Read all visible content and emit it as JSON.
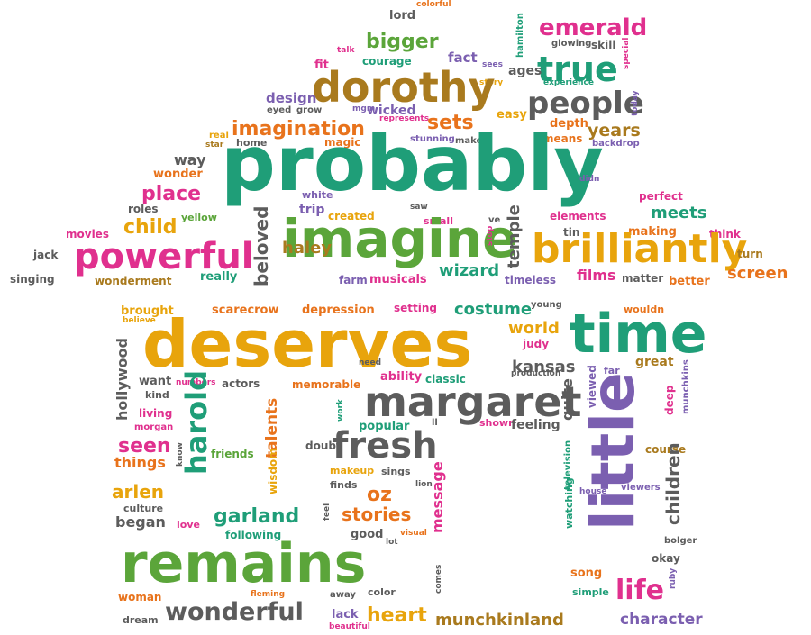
{
  "colors": {
    "green": "#5ba53a",
    "teal": "#1f9e78",
    "pink": "#e0308e",
    "orange": "#e8a40c",
    "brown": "#a97a1e",
    "purple": "#7b5fb0",
    "gray": "#5c5c5c",
    "orange_red": "#e8731c"
  },
  "words": [
    {
      "text": "lord",
      "color": "gray",
      "weight": 1
    },
    {
      "text": "colorful",
      "color": "orange_red",
      "weight": 1
    },
    {
      "text": "hamilton",
      "color": "teal",
      "weight": 1
    },
    {
      "text": "emerald",
      "color": "pink",
      "weight": 3
    },
    {
      "text": "talk",
      "color": "pink",
      "weight": 1
    },
    {
      "text": "bigger",
      "color": "green",
      "weight": 2
    },
    {
      "text": "fact",
      "color": "purple",
      "weight": 2
    },
    {
      "text": "sees",
      "color": "purple",
      "weight": 1
    },
    {
      "text": "glowing",
      "color": "gray",
      "weight": 1
    },
    {
      "text": "skill",
      "color": "gray",
      "weight": 1
    },
    {
      "text": "special",
      "color": "pink",
      "weight": 1
    },
    {
      "text": "fit",
      "color": "pink",
      "weight": 1
    },
    {
      "text": "courage",
      "color": "teal",
      "weight": 1
    },
    {
      "text": "true",
      "color": "teal",
      "weight": 4
    },
    {
      "text": "ages",
      "color": "gray",
      "weight": 1
    },
    {
      "text": "story",
      "color": "orange",
      "weight": 1
    },
    {
      "text": "experience",
      "color": "teal",
      "weight": 1
    },
    {
      "text": "dorothy",
      "color": "brown",
      "weight": 5
    },
    {
      "text": "design",
      "color": "purple",
      "weight": 2
    },
    {
      "text": "eyed",
      "color": "gray",
      "weight": 1
    },
    {
      "text": "grow",
      "color": "gray",
      "weight": 1
    },
    {
      "text": "mgm",
      "color": "purple",
      "weight": 1
    },
    {
      "text": "wicked",
      "color": "purple",
      "weight": 2
    },
    {
      "text": "people",
      "color": "gray",
      "weight": 3
    },
    {
      "text": "today",
      "color": "purple",
      "weight": 1
    },
    {
      "text": "represents",
      "color": "pink",
      "weight": 1
    },
    {
      "text": "easy",
      "color": "orange",
      "weight": 1
    },
    {
      "text": "depth",
      "color": "orange_red",
      "weight": 1
    },
    {
      "text": "imagination",
      "color": "orange_red",
      "weight": 3
    },
    {
      "text": "sets",
      "color": "orange_red",
      "weight": 3
    },
    {
      "text": "years",
      "color": "brown",
      "weight": 2
    },
    {
      "text": "real",
      "color": "orange",
      "weight": 1
    },
    {
      "text": "star",
      "color": "brown",
      "weight": 1
    },
    {
      "text": "home",
      "color": "gray",
      "weight": 1
    },
    {
      "text": "magic",
      "color": "orange_red",
      "weight": 1
    },
    {
      "text": "stunning",
      "color": "purple",
      "weight": 1
    },
    {
      "text": "makes",
      "color": "gray",
      "weight": 1
    },
    {
      "text": "means",
      "color": "orange_red",
      "weight": 1
    },
    {
      "text": "backdrop",
      "color": "purple",
      "weight": 1
    },
    {
      "text": "way",
      "color": "gray",
      "weight": 2
    },
    {
      "text": "probably",
      "color": "teal",
      "weight": 8
    },
    {
      "text": "wonder",
      "color": "orange_red",
      "weight": 1
    },
    {
      "text": "didn",
      "color": "purple",
      "weight": 1
    },
    {
      "text": "place",
      "color": "pink",
      "weight": 3
    },
    {
      "text": "white",
      "color": "purple",
      "weight": 1
    },
    {
      "text": "saw",
      "color": "gray",
      "weight": 1
    },
    {
      "text": "perfect",
      "color": "pink",
      "weight": 1
    },
    {
      "text": "roles",
      "color": "gray",
      "weight": 1
    },
    {
      "text": "trip",
      "color": "purple",
      "weight": 1
    },
    {
      "text": "yellow",
      "color": "green",
      "weight": 1
    },
    {
      "text": "created",
      "color": "orange",
      "weight": 1
    },
    {
      "text": "small",
      "color": "pink",
      "weight": 1
    },
    {
      "text": "ve",
      "color": "gray",
      "weight": 1
    },
    {
      "text": "elements",
      "color": "pink",
      "weight": 1
    },
    {
      "text": "meets",
      "color": "teal",
      "weight": 2
    },
    {
      "text": "movies",
      "color": "pink",
      "weight": 1
    },
    {
      "text": "child",
      "color": "orange",
      "weight": 3
    },
    {
      "text": "imagine",
      "color": "green",
      "weight": 6
    },
    {
      "text": "stop",
      "color": "pink",
      "weight": 1
    },
    {
      "text": "temple",
      "color": "gray",
      "weight": 2
    },
    {
      "text": "tin",
      "color": "gray",
      "weight": 1
    },
    {
      "text": "making",
      "color": "orange_red",
      "weight": 1
    },
    {
      "text": "think",
      "color": "pink",
      "weight": 1
    },
    {
      "text": "jack",
      "color": "gray",
      "weight": 1
    },
    {
      "text": "powerful",
      "color": "pink",
      "weight": 5
    },
    {
      "text": "beloved",
      "color": "gray",
      "weight": 2
    },
    {
      "text": "brilliantly",
      "color": "orange",
      "weight": 5
    },
    {
      "text": "turn",
      "color": "brown",
      "weight": 1
    },
    {
      "text": "haley",
      "color": "brown",
      "weight": 2
    },
    {
      "text": "wizard",
      "color": "teal",
      "weight": 2
    },
    {
      "text": "singing",
      "color": "gray",
      "weight": 1
    },
    {
      "text": "wonderment",
      "color": "brown",
      "weight": 1
    },
    {
      "text": "really",
      "color": "teal",
      "weight": 1
    },
    {
      "text": "farm",
      "color": "purple",
      "weight": 1
    },
    {
      "text": "musicals",
      "color": "pink",
      "weight": 1
    },
    {
      "text": "timeless",
      "color": "purple",
      "weight": 1
    },
    {
      "text": "films",
      "color": "pink",
      "weight": 2
    },
    {
      "text": "matter",
      "color": "gray",
      "weight": 1
    },
    {
      "text": "better",
      "color": "orange_red",
      "weight": 1
    },
    {
      "text": "screen",
      "color": "orange_red",
      "weight": 2
    },
    {
      "text": "brought",
      "color": "orange",
      "weight": 1
    },
    {
      "text": "believe",
      "color": "orange",
      "weight": 1
    },
    {
      "text": "scarecrow",
      "color": "orange_red",
      "weight": 1
    },
    {
      "text": "depression",
      "color": "orange_red",
      "weight": 1
    },
    {
      "text": "setting",
      "color": "pink",
      "weight": 1
    },
    {
      "text": "young",
      "color": "gray",
      "weight": 1
    },
    {
      "text": "costume",
      "color": "teal",
      "weight": 2
    },
    {
      "text": "wouldn",
      "color": "orange_red",
      "weight": 1
    },
    {
      "text": "time",
      "color": "teal",
      "weight": 6
    },
    {
      "text": "deserves",
      "color": "orange",
      "weight": 8
    },
    {
      "text": "world",
      "color": "orange",
      "weight": 2
    },
    {
      "text": "judy",
      "color": "pink",
      "weight": 1
    },
    {
      "text": "hollywood",
      "color": "gray",
      "weight": 2
    },
    {
      "text": "need",
      "color": "gray",
      "weight": 1
    },
    {
      "text": "kansas",
      "color": "gray",
      "weight": 2
    },
    {
      "text": "great",
      "color": "brown",
      "weight": 1
    },
    {
      "text": "munchkins",
      "color": "purple",
      "weight": 1
    },
    {
      "text": "want",
      "color": "gray",
      "weight": 1
    },
    {
      "text": "numbers",
      "color": "pink",
      "weight": 1
    },
    {
      "text": "ability",
      "color": "pink",
      "weight": 1
    },
    {
      "text": "classic",
      "color": "teal",
      "weight": 1
    },
    {
      "text": "production",
      "color": "gray",
      "weight": 1
    },
    {
      "text": "viewed",
      "color": "purple",
      "weight": 1
    },
    {
      "text": "far",
      "color": "purple",
      "weight": 1
    },
    {
      "text": "kind",
      "color": "gray",
      "weight": 1
    },
    {
      "text": "actors",
      "color": "gray",
      "weight": 1
    },
    {
      "text": "memorable",
      "color": "orange_red",
      "weight": 1
    },
    {
      "text": "margaret",
      "color": "gray",
      "weight": 5
    },
    {
      "text": "deep",
      "color": "pink",
      "weight": 1
    },
    {
      "text": "living",
      "color": "pink",
      "weight": 1
    },
    {
      "text": "morgan",
      "color": "pink",
      "weight": 1
    },
    {
      "text": "harold",
      "color": "teal",
      "weight": 4
    },
    {
      "text": "work",
      "color": "teal",
      "weight": 1
    },
    {
      "text": "popular",
      "color": "teal",
      "weight": 1
    },
    {
      "text": "ll",
      "color": "gray",
      "weight": 1
    },
    {
      "text": "shown",
      "color": "pink",
      "weight": 1
    },
    {
      "text": "feeling",
      "color": "gray",
      "weight": 1
    },
    {
      "text": "quite",
      "color": "gray",
      "weight": 2
    },
    {
      "text": "little",
      "color": "purple",
      "weight": 7
    },
    {
      "text": "talents",
      "color": "orange_red",
      "weight": 2
    },
    {
      "text": "seen",
      "color": "pink",
      "weight": 2
    },
    {
      "text": "know",
      "color": "gray",
      "weight": 1
    },
    {
      "text": "fresh",
      "color": "gray",
      "weight": 5
    },
    {
      "text": "doubt",
      "color": "gray",
      "weight": 1
    },
    {
      "text": "friends",
      "color": "green",
      "weight": 1
    },
    {
      "text": "things",
      "color": "orange_red",
      "weight": 2
    },
    {
      "text": "wisdom",
      "color": "orange",
      "weight": 1
    },
    {
      "text": "makeup",
      "color": "orange",
      "weight": 1
    },
    {
      "text": "sings",
      "color": "gray",
      "weight": 1
    },
    {
      "text": "message",
      "color": "pink",
      "weight": 2
    },
    {
      "text": "television",
      "color": "teal",
      "weight": 1
    },
    {
      "text": "watching",
      "color": "teal",
      "weight": 1
    },
    {
      "text": "course",
      "color": "brown",
      "weight": 1
    },
    {
      "text": "children",
      "color": "gray",
      "weight": 2
    },
    {
      "text": "arlen",
      "color": "orange",
      "weight": 3
    },
    {
      "text": "finds",
      "color": "gray",
      "weight": 1
    },
    {
      "text": "oz",
      "color": "orange_red",
      "weight": 3
    },
    {
      "text": "lion",
      "color": "gray",
      "weight": 1
    },
    {
      "text": "house",
      "color": "purple",
      "weight": 1
    },
    {
      "text": "viewers",
      "color": "purple",
      "weight": 1
    },
    {
      "text": "culture",
      "color": "gray",
      "weight": 1
    },
    {
      "text": "garland",
      "color": "teal",
      "weight": 3
    },
    {
      "text": "stories",
      "color": "orange_red",
      "weight": 3
    },
    {
      "text": "feel",
      "color": "gray",
      "weight": 1
    },
    {
      "text": "began",
      "color": "gray",
      "weight": 2
    },
    {
      "text": "love",
      "color": "pink",
      "weight": 1
    },
    {
      "text": "following",
      "color": "teal",
      "weight": 1
    },
    {
      "text": "good",
      "color": "gray",
      "weight": 1
    },
    {
      "text": "visual",
      "color": "orange_red",
      "weight": 1
    },
    {
      "text": "lot",
      "color": "gray",
      "weight": 1
    },
    {
      "text": "remains",
      "color": "green",
      "weight": 8
    },
    {
      "text": "bolger",
      "color": "gray",
      "weight": 1
    },
    {
      "text": "okay",
      "color": "gray",
      "weight": 1
    },
    {
      "text": "song",
      "color": "orange_red",
      "weight": 1
    },
    {
      "text": "ruby",
      "color": "purple",
      "weight": 1
    },
    {
      "text": "comes",
      "color": "gray",
      "weight": 1
    },
    {
      "text": "simple",
      "color": "teal",
      "weight": 1
    },
    {
      "text": "woman",
      "color": "orange_red",
      "weight": 1
    },
    {
      "text": "fleming",
      "color": "orange_red",
      "weight": 1
    },
    {
      "text": "away",
      "color": "gray",
      "weight": 1
    },
    {
      "text": "color",
      "color": "gray",
      "weight": 1
    },
    {
      "text": "life",
      "color": "pink",
      "weight": 4
    },
    {
      "text": "wonderful",
      "color": "gray",
      "weight": 4
    },
    {
      "text": "heart",
      "color": "orange",
      "weight": 3
    },
    {
      "text": "lack",
      "color": "purple",
      "weight": 1
    },
    {
      "text": "dream",
      "color": "gray",
      "weight": 1
    },
    {
      "text": "beautiful",
      "color": "pink",
      "weight": 1
    },
    {
      "text": "munchkinland",
      "color": "brown",
      "weight": 2
    },
    {
      "text": "character",
      "color": "purple",
      "weight": 2
    }
  ]
}
